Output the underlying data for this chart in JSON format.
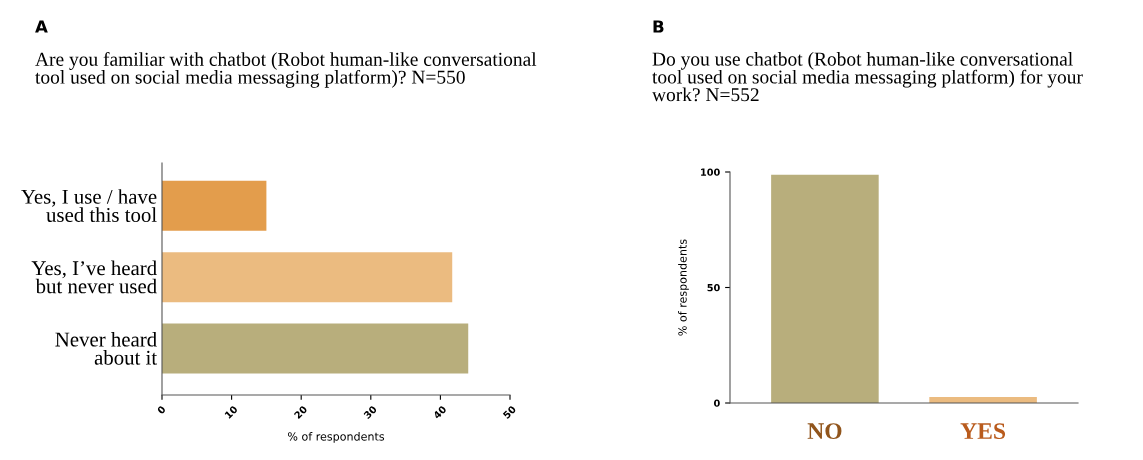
{
  "chart_data": [
    {
      "type": "bar",
      "orientation": "horizontal",
      "title": "Are you familiar with chatbot (Robot human-like conversational\ntool used on social media messaging platform)? N=550",
      "annotations": [
        "A"
      ],
      "xlabel": "% of respondents",
      "categories": [
        "Yes, I use / have\nused this tool",
        "Yes, I’ve heard\nbut never used",
        "Never heard\nabout it"
      ],
      "values": [
        15,
        41.7,
        44.0
      ],
      "colors": [
        "#e39d4c",
        "#ebbb80",
        "#b8ae7c"
      ],
      "xlim": [
        0,
        50
      ],
      "xticks": [
        0,
        10,
        20,
        30,
        40,
        50
      ]
    },
    {
      "type": "bar",
      "title": "Do you use chatbot (Robot human-like conversational\ntool used on social media messaging platform) for your\nwork? N=552",
      "annotations": [
        "B"
      ],
      "ylabel": "% of respondents",
      "categories": [
        "NO",
        "YES"
      ],
      "values": [
        98.8,
        2.6
      ],
      "colors": [
        "#b8ae7c",
        "#ebbb80"
      ],
      "ylim": [
        0,
        100
      ],
      "yticks": [
        0,
        50,
        100
      ]
    }
  ]
}
